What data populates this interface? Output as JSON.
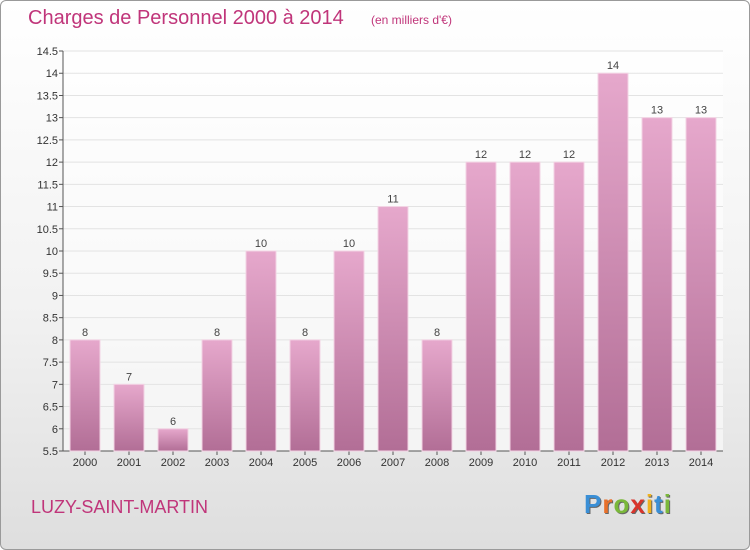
{
  "title": "Charges de Personnel 2000 à 2014",
  "unit_note": "(en milliers d'€)",
  "commune": "LUZY-SAINT-MARTIN",
  "logo": "Proxiti",
  "colors": {
    "bar_top": "#e6a8cc",
    "bar_bottom": "#b26e96",
    "accent": "#c0357a"
  },
  "chart_data": {
    "type": "bar",
    "categories": [
      "2000",
      "2001",
      "2002",
      "2003",
      "2004",
      "2005",
      "2006",
      "2007",
      "2008",
      "2009",
      "2010",
      "2011",
      "2012",
      "2013",
      "2014"
    ],
    "values": [
      8,
      7,
      6,
      8,
      10,
      8,
      10,
      11,
      8,
      12,
      12,
      12,
      14,
      13,
      13
    ],
    "value_labels": [
      "8",
      "7",
      "6",
      "8",
      "10",
      "8",
      "10",
      "11",
      "8",
      "12",
      "12",
      "12",
      "14",
      "13",
      "13"
    ],
    "ylim": [
      5.5,
      14.5
    ],
    "yticks": [
      5.5,
      6,
      6.5,
      7,
      7.5,
      8,
      8.5,
      9,
      9.5,
      10,
      10.5,
      11,
      11.5,
      12,
      12.5,
      13,
      13.5,
      14,
      14.5
    ],
    "ytick_labels": [
      "5.5",
      "6",
      "6.5",
      "7",
      "7.5",
      "8",
      "8.5",
      "9",
      "9.5",
      "10",
      "10.5",
      "11",
      "11.5",
      "12",
      "12.5",
      "13",
      "13.5",
      "14",
      "14.5"
    ],
    "grid": true,
    "legend": "none"
  }
}
